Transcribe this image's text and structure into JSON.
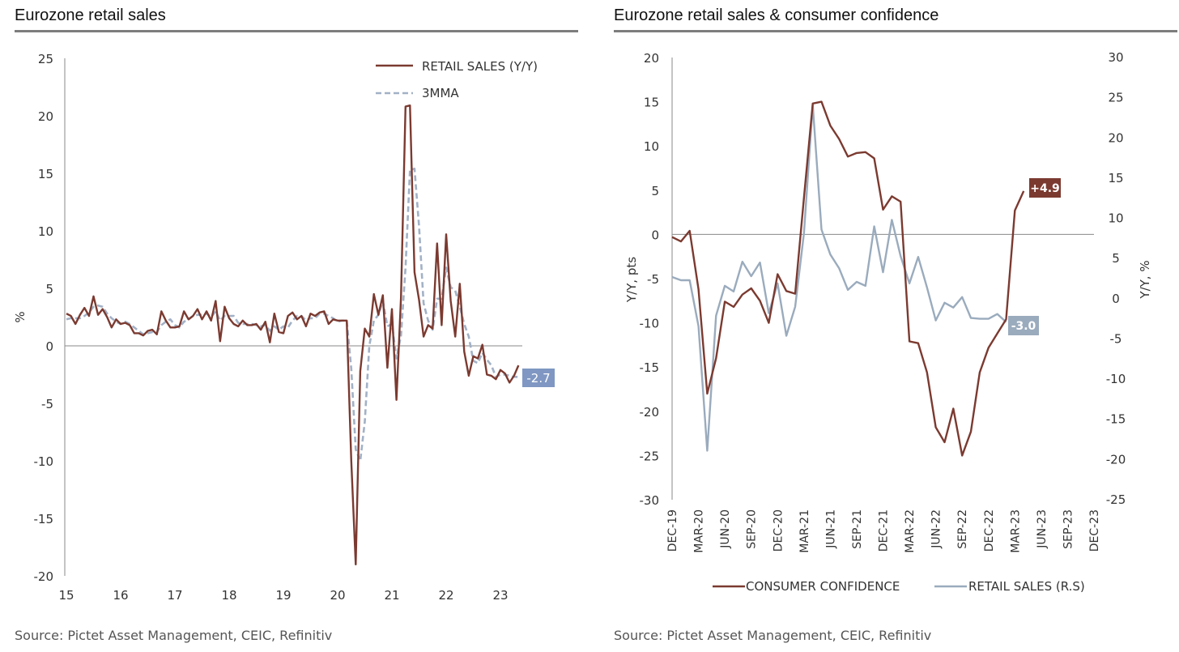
{
  "colors": {
    "brown": "#7b3a30",
    "grey_blue": "#9aabbd",
    "dashed": "#a2b1c6",
    "label_blue": "#7f97c2",
    "axis": "#888888",
    "rule": "#7d7d7d"
  },
  "left": {
    "title": "Eurozone retail sales",
    "source": "Source: Pictet Asset Management, CEIC, Refinitiv",
    "chart_data": {
      "type": "line",
      "ylabel": "%",
      "ylim": [
        -20,
        25
      ],
      "yticks": [
        "25",
        "20",
        "15",
        "10",
        "5",
        "0",
        "-5",
        "-10",
        "-15",
        "-20"
      ],
      "xlim": [
        2015,
        2023.7
      ],
      "xticks": [
        "15",
        "16",
        "17",
        "18",
        "19",
        "20",
        "21",
        "22",
        "23"
      ],
      "grid": false,
      "legend_position": "top-right",
      "end_label": "-2.7",
      "series": [
        {
          "name": "RETAIL SALES (Y/Y)",
          "style": "solid",
          "x": [
            2015.0,
            2015.083,
            2015.167,
            2015.25,
            2015.333,
            2015.417,
            2015.5,
            2015.583,
            2015.667,
            2015.75,
            2015.833,
            2015.917,
            2016.0,
            2016.083,
            2016.167,
            2016.25,
            2016.333,
            2016.417,
            2016.5,
            2016.583,
            2016.667,
            2016.75,
            2016.833,
            2016.917,
            2017.0,
            2017.083,
            2017.167,
            2017.25,
            2017.333,
            2017.417,
            2017.5,
            2017.583,
            2017.667,
            2017.75,
            2017.833,
            2017.917,
            2018.0,
            2018.083,
            2018.167,
            2018.25,
            2018.333,
            2018.417,
            2018.5,
            2018.583,
            2018.667,
            2018.75,
            2018.833,
            2018.917,
            2019.0,
            2019.083,
            2019.167,
            2019.25,
            2019.333,
            2019.417,
            2019.5,
            2019.583,
            2019.667,
            2019.75,
            2019.833,
            2019.917,
            2020.0,
            2020.083,
            2020.167,
            2020.25,
            2020.333,
            2020.417,
            2020.5,
            2020.583,
            2020.667,
            2020.75,
            2020.833,
            2020.917,
            2021.0,
            2021.083,
            2021.167,
            2021.25,
            2021.333,
            2021.417,
            2021.5,
            2021.583,
            2021.667,
            2021.75,
            2021.833,
            2021.917,
            2022.0,
            2022.083,
            2022.167,
            2022.25,
            2022.333,
            2022.417,
            2022.5,
            2022.583,
            2022.667,
            2022.75,
            2022.833,
            2022.917,
            2023.0,
            2023.083,
            2023.167,
            2023.25,
            2023.333
          ],
          "values": [
            2.8,
            2.6,
            1.9,
            2.7,
            3.3,
            2.6,
            4.3,
            2.7,
            3.2,
            2.5,
            1.6,
            2.3,
            1.9,
            2.0,
            1.8,
            1.1,
            1.1,
            0.9,
            1.3,
            1.4,
            1.0,
            3.0,
            2.2,
            1.6,
            1.6,
            1.7,
            3.0,
            2.3,
            2.6,
            3.2,
            2.3,
            3.0,
            2.2,
            3.9,
            0.4,
            3.4,
            2.4,
            1.9,
            1.7,
            2.2,
            1.8,
            1.8,
            1.9,
            1.4,
            2.1,
            0.3,
            2.8,
            1.2,
            1.1,
            2.6,
            2.9,
            2.3,
            2.6,
            1.7,
            2.8,
            2.6,
            2.9,
            3.0,
            1.9,
            2.3,
            2.2,
            2.2,
            2.2,
            -10.0,
            -19.0,
            -2.2,
            1.5,
            0.8,
            4.5,
            2.7,
            4.4,
            -1.9,
            3.2,
            -4.7,
            4.2,
            20.8,
            20.9,
            6.4,
            4.0,
            0.8,
            1.8,
            1.5,
            8.9,
            1.8,
            9.7,
            3.9,
            0.8,
            5.4,
            -0.5,
            -2.6,
            -0.9,
            -1.1,
            0.1,
            -2.5,
            -2.6,
            -2.9,
            -2.1,
            -2.4,
            -3.2,
            -2.6,
            -1.7
          ]
        },
        {
          "name": "3MMA",
          "style": "dashed",
          "x": [
            2015.0,
            2015.083,
            2015.167,
            2015.25,
            2015.333,
            2015.417,
            2015.5,
            2015.583,
            2015.667,
            2015.75,
            2015.833,
            2015.917,
            2016.0,
            2016.083,
            2016.167,
            2016.25,
            2016.333,
            2016.417,
            2016.5,
            2016.583,
            2016.667,
            2016.75,
            2016.833,
            2016.917,
            2017.0,
            2017.083,
            2017.167,
            2017.25,
            2017.333,
            2017.417,
            2017.5,
            2017.583,
            2017.667,
            2017.75,
            2017.833,
            2017.917,
            2018.0,
            2018.083,
            2018.167,
            2018.25,
            2018.333,
            2018.417,
            2018.5,
            2018.583,
            2018.667,
            2018.75,
            2018.833,
            2018.917,
            2019.0,
            2019.083,
            2019.167,
            2019.25,
            2019.333,
            2019.417,
            2019.5,
            2019.583,
            2019.667,
            2019.75,
            2019.833,
            2019.917,
            2020.0,
            2020.083,
            2020.167,
            2020.25,
            2020.333,
            2020.417,
            2020.5,
            2020.583,
            2020.667,
            2020.75,
            2020.833,
            2020.917,
            2021.0,
            2021.083,
            2021.167,
            2021.25,
            2021.333,
            2021.417,
            2021.5,
            2021.583,
            2021.667,
            2021.75,
            2021.833,
            2021.917,
            2022.0,
            2022.083,
            2022.167,
            2022.25,
            2022.333,
            2022.417,
            2022.5,
            2022.583,
            2022.667,
            2022.75,
            2022.833,
            2022.917,
            2023.0,
            2023.083,
            2023.167,
            2023.25,
            2023.333
          ],
          "values": [
            2.3,
            2.4,
            2.4,
            2.4,
            2.6,
            2.9,
            3.4,
            3.5,
            3.4,
            2.8,
            2.4,
            2.1,
            1.9,
            2.1,
            1.9,
            1.6,
            1.3,
            1.0,
            1.1,
            1.2,
            1.2,
            1.8,
            2.1,
            2.3,
            1.8,
            1.6,
            2.1,
            2.3,
            2.6,
            2.7,
            2.7,
            2.8,
            2.5,
            3.0,
            2.2,
            2.6,
            2.6,
            2.6,
            2.0,
            1.9,
            1.9,
            1.9,
            1.8,
            1.7,
            1.8,
            1.3,
            1.7,
            1.4,
            1.7,
            1.6,
            2.2,
            2.6,
            2.6,
            2.2,
            2.4,
            2.4,
            2.8,
            2.8,
            2.6,
            2.4,
            2.1,
            2.2,
            2.2,
            -2.0,
            -9.0,
            -10.0,
            -6.6,
            0.0,
            2.2,
            2.7,
            3.9,
            1.7,
            1.9,
            -1.1,
            0.9,
            6.8,
            15.3,
            15.4,
            10.4,
            3.7,
            2.2,
            1.4,
            4.1,
            4.1,
            6.8,
            5.1,
            4.8,
            3.4,
            1.9,
            0.8,
            -1.3,
            -1.5,
            -0.6,
            -1.2,
            -1.7,
            -2.7,
            -2.5,
            -2.5,
            -2.6,
            -2.7,
            -2.7
          ]
        }
      ]
    }
  },
  "right": {
    "title": "Eurozone retail sales & consumer confidence",
    "source": "Source: Pictet Asset Management, CEIC, Refinitiv",
    "chart_data": {
      "type": "line",
      "ylabel": "Y/Y, pts",
      "ylim": [
        -30,
        20
      ],
      "yticks": [
        "20",
        "15",
        "10",
        "5",
        "0",
        "-5",
        "-10",
        "-15",
        "-20",
        "-25",
        "-30"
      ],
      "y2label": "Y/Y, %",
      "y2lim": [
        -25,
        30
      ],
      "y2ticks": [
        "30",
        "25",
        "20",
        "15",
        "10",
        "5",
        "0",
        "-5",
        "-10",
        "-15",
        "-20",
        "-25"
      ],
      "categories": [
        "DEC-19",
        "MAR-20",
        "JUN-20",
        "SEP-20",
        "DEC-20",
        "MAR-21",
        "JUN-21",
        "SEP-21",
        "DEC-21",
        "MAR-22",
        "JUN-22",
        "SEP-22",
        "DEC-22",
        "MAR-23",
        "JUN-23",
        "SEP-23",
        "DEC-23"
      ],
      "x_month_index_range": [
        0,
        48
      ],
      "grid": false,
      "legend_position": "bottom",
      "labels": [
        "+4.9",
        "-3.0"
      ],
      "series": [
        {
          "name": "CONSUMER CONFIDENCE",
          "axis": "left",
          "x": [
            0,
            1,
            2,
            3,
            4,
            5,
            6,
            7,
            8,
            9,
            10,
            11,
            12,
            13,
            14,
            15,
            16,
            17,
            18,
            19,
            20,
            21,
            22,
            23,
            24,
            25,
            26,
            27,
            28,
            29,
            30,
            31,
            32,
            33,
            34,
            35,
            36,
            37,
            38,
            39,
            40
          ],
          "values": [
            -0.3,
            -0.8,
            0.4,
            -6.2,
            -18.0,
            -14.0,
            -7.6,
            -8.2,
            -6.8,
            -6.1,
            -7.5,
            -10.0,
            -4.5,
            -6.4,
            -6.7,
            4.1,
            14.8,
            15.0,
            12.3,
            10.8,
            8.8,
            9.2,
            9.3,
            8.6,
            2.8,
            4.3,
            3.7,
            -12.1,
            -12.3,
            -15.6,
            -21.8,
            -23.5,
            -19.7,
            -25.0,
            -22.3,
            -15.6,
            -12.8,
            -11.2,
            -9.6,
            2.7,
            4.9
          ]
        },
        {
          "name": "RETAIL SALES (R.S)",
          "axis": "right",
          "x": [
            0,
            1,
            2,
            3,
            4,
            5,
            6,
            7,
            8,
            9,
            10,
            11,
            12,
            13,
            14,
            15,
            16,
            17,
            18,
            19,
            20,
            21,
            22,
            23,
            24,
            25,
            26,
            27,
            28,
            29,
            30,
            31,
            32,
            33,
            34,
            35,
            36,
            37,
            38
          ],
          "values": [
            2.6,
            2.2,
            2.2,
            -3.5,
            -19.0,
            -2.2,
            1.5,
            0.8,
            4.5,
            2.7,
            4.4,
            -1.9,
            1.8,
            -4.7,
            -1.1,
            8.0,
            24.0,
            8.5,
            5.4,
            3.7,
            1.0,
            2.0,
            1.5,
            8.9,
            3.2,
            9.7,
            5.2,
            1.8,
            5.1,
            1.3,
            -2.8,
            -0.6,
            -1.2,
            0.1,
            -2.5,
            -2.6,
            -2.6,
            -2.0,
            -3.0
          ]
        }
      ]
    }
  }
}
